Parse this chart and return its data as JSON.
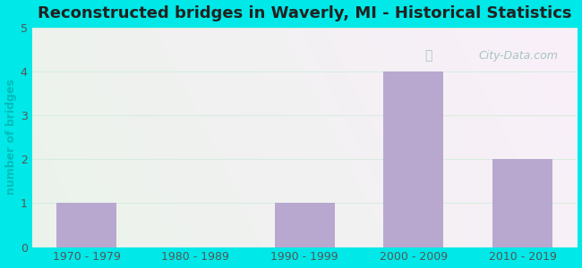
{
  "title": "Reconstructed bridges in Waverly, MI - Historical Statistics",
  "categories": [
    "1970 - 1979",
    "1980 - 1989",
    "1990 - 1999",
    "2000 - 2009",
    "2010 - 2019"
  ],
  "values": [
    1,
    0,
    1,
    4,
    2
  ],
  "bar_color": "#b8a8cf",
  "ylabel": "number of bridges",
  "ylim": [
    0,
    5
  ],
  "yticks": [
    0,
    1,
    2,
    3,
    4,
    5
  ],
  "background_outer": "#00e8e8",
  "grid_color": "#d8ede0",
  "title_fontsize": 13,
  "ylabel_fontsize": 9,
  "tick_fontsize": 9,
  "watermark": "City-Data.com",
  "bg_color_topleft": "#d8eed8",
  "bg_color_topright": "#eef8f4",
  "bg_color_bottomleft": "#d8eed8",
  "bg_color_bottomright": "#eef8f4"
}
